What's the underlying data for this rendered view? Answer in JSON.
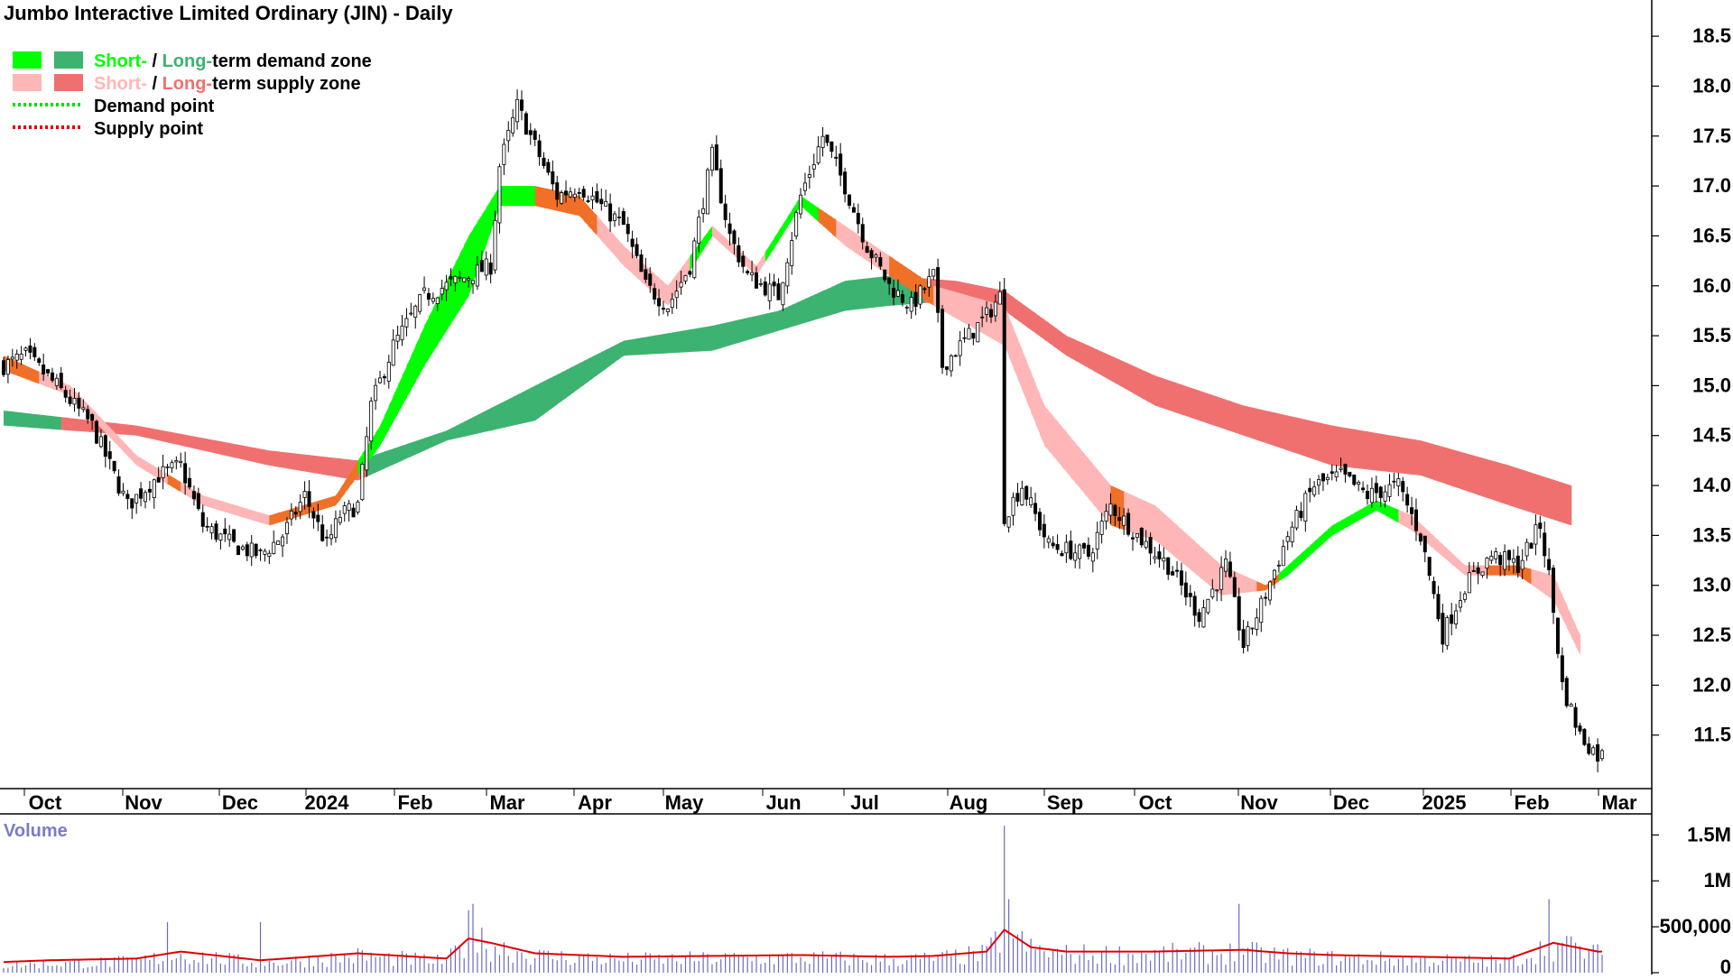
{
  "chart_data": {
    "type": "candlestick",
    "title": "Jumbo Interactive Limited Ordinary (JIN) - Daily",
    "legend": {
      "items": [
        {
          "parts": [
            {
              "text": "Short-",
              "color": "#00ff00"
            },
            {
              "text": " / ",
              "color": "#000000"
            },
            {
              "text": "Long-",
              "color": "#3cb371"
            },
            {
              "text": "term demand zone",
              "color": "#000000"
            }
          ],
          "swatches": [
            "#00ff00",
            "#3cb371"
          ]
        },
        {
          "parts": [
            {
              "text": "Short-",
              "color": "#ffb6b6"
            },
            {
              "text": " / ",
              "color": "#000000"
            },
            {
              "text": "Long-",
              "color": "#f07070"
            },
            {
              "text": "term supply zone",
              "color": "#000000"
            }
          ],
          "swatches": [
            "#ffb6b6",
            "#f07070"
          ]
        },
        {
          "parts": [
            {
              "text": "Demand point",
              "color": "#000000"
            }
          ],
          "line": "#00dd00"
        },
        {
          "parts": [
            {
              "text": "Supply point",
              "color": "#000000"
            }
          ],
          "line": "#dd0000"
        }
      ]
    },
    "x_labels": [
      "Oct",
      "Nov",
      "Dec",
      "2024",
      "Feb",
      "Mar",
      "Apr",
      "May",
      "Jun",
      "Jul",
      "Aug",
      "Sep",
      "Oct",
      "Nov",
      "Dec",
      "2025",
      "Feb",
      "Mar"
    ],
    "price_axis": {
      "min": 11.0,
      "max": 18.7,
      "ticks": [
        11.5,
        12.0,
        12.5,
        13.0,
        13.5,
        14.0,
        14.5,
        15.0,
        15.5,
        16.0,
        16.5,
        17.0,
        17.5,
        18.0,
        18.5
      ]
    },
    "volume_axis": {
      "label": "Volume",
      "max": 1700000,
      "ticks": [
        {
          "v": 0,
          "t": "0"
        },
        {
          "v": 500000,
          "t": "500,000"
        },
        {
          "v": 1000000,
          "t": "1M"
        },
        {
          "v": 1500000,
          "t": "1.5M"
        }
      ]
    },
    "close_anchors": [
      [
        0,
        15.2
      ],
      [
        5,
        15.3
      ],
      [
        12,
        15.0
      ],
      [
        20,
        14.6
      ],
      [
        28,
        13.8
      ],
      [
        35,
        14.1
      ],
      [
        40,
        14.2
      ],
      [
        45,
        13.6
      ],
      [
        52,
        13.4
      ],
      [
        58,
        13.3
      ],
      [
        63,
        13.5
      ],
      [
        68,
        13.9
      ],
      [
        73,
        13.4
      ],
      [
        76,
        13.7
      ],
      [
        80,
        13.8
      ],
      [
        83,
        14.8
      ],
      [
        88,
        15.4
      ],
      [
        95,
        15.9
      ],
      [
        100,
        16.0
      ],
      [
        105,
        16.1
      ],
      [
        110,
        16.2
      ],
      [
        112,
        17.2
      ],
      [
        116,
        17.8
      ],
      [
        120,
        17.4
      ],
      [
        125,
        16.9
      ],
      [
        130,
        17.0
      ],
      [
        135,
        16.8
      ],
      [
        140,
        16.6
      ],
      [
        145,
        16.0
      ],
      [
        150,
        15.8
      ],
      [
        155,
        16.2
      ],
      [
        160,
        17.3
      ],
      [
        164,
        16.5
      ],
      [
        168,
        16.1
      ],
      [
        175,
        15.9
      ],
      [
        180,
        16.9
      ],
      [
        185,
        17.5
      ],
      [
        190,
        17.0
      ],
      [
        195,
        16.4
      ],
      [
        200,
        16.0
      ],
      [
        205,
        15.8
      ],
      [
        210,
        16.1
      ],
      [
        212,
        15.2
      ],
      [
        216,
        15.4
      ],
      [
        222,
        15.7
      ],
      [
        225,
        15.9
      ],
      [
        226,
        13.7
      ],
      [
        230,
        14.0
      ],
      [
        236,
        13.4
      ],
      [
        245,
        13.3
      ],
      [
        250,
        13.8
      ],
      [
        256,
        13.5
      ],
      [
        263,
        13.2
      ],
      [
        270,
        12.7
      ],
      [
        276,
        13.2
      ],
      [
        280,
        12.4
      ],
      [
        284,
        12.8
      ],
      [
        290,
        13.5
      ],
      [
        296,
        14.0
      ],
      [
        302,
        14.1
      ],
      [
        308,
        13.9
      ],
      [
        315,
        14.0
      ],
      [
        320,
        13.5
      ],
      [
        325,
        12.5
      ],
      [
        330,
        13.0
      ],
      [
        336,
        13.3
      ],
      [
        342,
        13.2
      ],
      [
        347,
        13.6
      ],
      [
        349,
        13.1
      ],
      [
        352,
        12.0
      ],
      [
        356,
        11.5
      ],
      [
        360,
        11.3
      ]
    ],
    "volume_anchors": [
      [
        0,
        0.08
      ],
      [
        10,
        0.1
      ],
      [
        30,
        0.12
      ],
      [
        40,
        0.2
      ],
      [
        58,
        0.1
      ],
      [
        80,
        0.18
      ],
      [
        100,
        0.12
      ],
      [
        105,
        0.35
      ],
      [
        110,
        0.3
      ],
      [
        120,
        0.18
      ],
      [
        140,
        0.14
      ],
      [
        160,
        0.15
      ],
      [
        180,
        0.16
      ],
      [
        200,
        0.14
      ],
      [
        210,
        0.15
      ],
      [
        222,
        0.2
      ],
      [
        226,
        0.45
      ],
      [
        232,
        0.25
      ],
      [
        240,
        0.2
      ],
      [
        260,
        0.2
      ],
      [
        280,
        0.22
      ],
      [
        290,
        0.18
      ],
      [
        300,
        0.16
      ],
      [
        320,
        0.14
      ],
      [
        340,
        0.12
      ],
      [
        350,
        0.3
      ],
      [
        360,
        0.2
      ]
    ],
    "volume_spikes": [
      [
        37,
        0.55
      ],
      [
        58,
        0.55
      ],
      [
        105,
        0.68
      ],
      [
        106,
        0.75
      ],
      [
        226,
        1.6
      ],
      [
        227,
        0.8
      ],
      [
        279,
        0.75
      ],
      [
        349,
        0.8
      ],
      [
        353,
        0.4
      ]
    ],
    "zones": {
      "long_upper": [
        [
          0,
          14.75
        ],
        [
          30,
          14.6
        ],
        [
          60,
          14.35
        ],
        [
          80,
          14.25
        ],
        [
          100,
          14.55
        ],
        [
          120,
          15.0
        ],
        [
          140,
          15.45
        ],
        [
          160,
          15.6
        ],
        [
          175,
          15.75
        ],
        [
          190,
          16.05
        ],
        [
          200,
          16.1
        ],
        [
          215,
          16.05
        ],
        [
          226,
          15.95
        ],
        [
          240,
          15.5
        ],
        [
          260,
          15.1
        ],
        [
          280,
          14.8
        ],
        [
          300,
          14.6
        ],
        [
          320,
          14.45
        ],
        [
          340,
          14.2
        ],
        [
          354,
          14.0
        ]
      ],
      "long_lower": [
        [
          0,
          14.6
        ],
        [
          30,
          14.5
        ],
        [
          60,
          14.2
        ],
        [
          80,
          14.05
        ],
        [
          100,
          14.45
        ],
        [
          120,
          14.65
        ],
        [
          140,
          15.3
        ],
        [
          160,
          15.35
        ],
        [
          175,
          15.55
        ],
        [
          190,
          15.75
        ],
        [
          200,
          15.8
        ],
        [
          215,
          15.85
        ],
        [
          226,
          15.75
        ],
        [
          240,
          15.3
        ],
        [
          260,
          14.8
        ],
        [
          280,
          14.5
        ],
        [
          300,
          14.2
        ],
        [
          320,
          14.1
        ],
        [
          340,
          13.8
        ],
        [
          354,
          13.6
        ]
      ],
      "long_colors": [
        [
          0,
          "#3cb371"
        ],
        [
          13,
          "#f07070"
        ],
        [
          80,
          "#f07070"
        ],
        [
          82,
          "#3cb371"
        ],
        [
          208,
          "#f07070"
        ]
      ],
      "short_upper": [
        [
          0,
          15.3
        ],
        [
          15,
          15.0
        ],
        [
          30,
          14.3
        ],
        [
          45,
          13.9
        ],
        [
          60,
          13.7
        ],
        [
          75,
          13.9
        ],
        [
          85,
          14.6
        ],
        [
          95,
          15.6
        ],
        [
          105,
          16.5
        ],
        [
          112,
          17.0
        ],
        [
          120,
          17.0
        ],
        [
          130,
          16.9
        ],
        [
          140,
          16.4
        ],
        [
          150,
          16.0
        ],
        [
          160,
          16.6
        ],
        [
          170,
          16.2
        ],
        [
          180,
          16.9
        ],
        [
          190,
          16.6
        ],
        [
          200,
          16.3
        ],
        [
          210,
          16.0
        ],
        [
          226,
          15.8
        ],
        [
          235,
          14.8
        ],
        [
          250,
          14.0
        ],
        [
          260,
          13.8
        ],
        [
          275,
          13.2
        ],
        [
          285,
          13.0
        ],
        [
          290,
          13.2
        ],
        [
          300,
          13.6
        ],
        [
          310,
          13.85
        ],
        [
          318,
          13.7
        ],
        [
          330,
          13.2
        ],
        [
          342,
          13.2
        ],
        [
          350,
          13.1
        ],
        [
          356,
          12.5
        ]
      ],
      "short_lower": [
        [
          0,
          15.15
        ],
        [
          15,
          14.9
        ],
        [
          30,
          14.2
        ],
        [
          45,
          13.8
        ],
        [
          60,
          13.6
        ],
        [
          75,
          13.8
        ],
        [
          85,
          14.4
        ],
        [
          95,
          15.2
        ],
        [
          105,
          15.9
        ],
        [
          112,
          16.8
        ],
        [
          120,
          16.8
        ],
        [
          130,
          16.7
        ],
        [
          140,
          16.2
        ],
        [
          150,
          15.8
        ],
        [
          160,
          16.5
        ],
        [
          170,
          16.1
        ],
        [
          180,
          16.8
        ],
        [
          190,
          16.4
        ],
        [
          200,
          16.1
        ],
        [
          210,
          15.8
        ],
        [
          226,
          15.4
        ],
        [
          235,
          14.4
        ],
        [
          250,
          13.6
        ],
        [
          260,
          13.45
        ],
        [
          275,
          12.9
        ],
        [
          285,
          12.95
        ],
        [
          290,
          13.1
        ],
        [
          300,
          13.5
        ],
        [
          310,
          13.75
        ],
        [
          318,
          13.55
        ],
        [
          330,
          13.1
        ],
        [
          342,
          13.1
        ],
        [
          350,
          12.85
        ],
        [
          356,
          12.3
        ]
      ],
      "short_colors": [
        [
          0,
          "#f07028"
        ],
        [
          8,
          "#ffb6b6"
        ],
        [
          37,
          "#f07028"
        ],
        [
          40,
          "#ffb6b6"
        ],
        [
          60,
          "#f07028"
        ],
        [
          80,
          "#00ff00"
        ],
        [
          120,
          "#f07028"
        ],
        [
          134,
          "#ffb6b6"
        ],
        [
          155,
          "#00ff00"
        ],
        [
          160,
          "#ffb6b6"
        ],
        [
          172,
          "#00ff00"
        ],
        [
          184,
          "#f07028"
        ],
        [
          188,
          "#ffb6b6"
        ],
        [
          200,
          "#f07028"
        ],
        [
          210,
          "#ffb6b6"
        ],
        [
          250,
          "#f07028"
        ],
        [
          253,
          "#ffb6b6"
        ],
        [
          283,
          "#f07028"
        ],
        [
          288,
          "#00ff00"
        ],
        [
          315,
          "#ffb6b6"
        ],
        [
          335,
          "#f07028"
        ],
        [
          345,
          "#ffb6b6"
        ]
      ]
    }
  }
}
